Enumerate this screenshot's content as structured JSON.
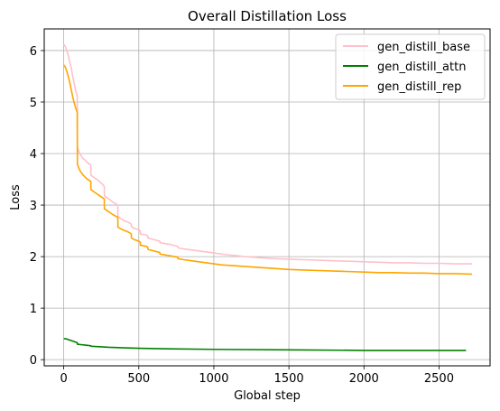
{
  "chart_data": {
    "type": "line",
    "title": "Overall Distillation Loss",
    "xlabel": "Global step",
    "ylabel": "Loss",
    "xlim": [
      -130,
      2840
    ],
    "ylim": [
      -0.12,
      6.42
    ],
    "xticks": [
      0,
      500,
      1000,
      1500,
      2000,
      2500
    ],
    "yticks": [
      0,
      1,
      2,
      3,
      4,
      5,
      6
    ],
    "grid": true,
    "legend_position": "top-right",
    "series": [
      {
        "name": "gen_distill_base",
        "color": "#ffc0cb",
        "x": [
          0,
          10,
          20,
          30,
          40,
          50,
          60,
          70,
          80,
          90,
          91,
          100,
          110,
          120,
          130,
          140,
          150,
          160,
          170,
          180,
          181,
          200,
          220,
          240,
          260,
          270,
          271,
          290,
          310,
          330,
          350,
          360,
          361,
          380,
          400,
          420,
          440,
          450,
          451,
          470,
          500,
          510,
          511,
          550,
          560,
          561,
          600,
          640,
          641,
          700,
          760,
          761,
          800,
          850,
          900,
          950,
          1000,
          1050,
          1100,
          1150,
          1200,
          1300,
          1400,
          1500,
          1600,
          1700,
          1800,
          1900,
          2000,
          2100,
          2200,
          2300,
          2400,
          2500,
          2600,
          2700,
          2720
        ],
        "y": [
          6.12,
          6.08,
          6.0,
          5.9,
          5.78,
          5.66,
          5.5,
          5.35,
          5.22,
          5.12,
          4.12,
          4.05,
          3.98,
          3.94,
          3.9,
          3.88,
          3.85,
          3.82,
          3.8,
          3.78,
          3.58,
          3.54,
          3.5,
          3.45,
          3.4,
          3.36,
          3.18,
          3.14,
          3.1,
          3.05,
          3.02,
          3.0,
          2.78,
          2.74,
          2.7,
          2.68,
          2.65,
          2.63,
          2.58,
          2.55,
          2.52,
          2.5,
          2.44,
          2.42,
          2.4,
          2.36,
          2.33,
          2.3,
          2.27,
          2.24,
          2.2,
          2.17,
          2.15,
          2.13,
          2.11,
          2.09,
          2.07,
          2.05,
          2.03,
          2.02,
          2.0,
          1.98,
          1.96,
          1.95,
          1.94,
          1.93,
          1.92,
          1.91,
          1.9,
          1.89,
          1.88,
          1.88,
          1.87,
          1.87,
          1.86,
          1.86,
          1.86
        ]
      },
      {
        "name": "gen_distill_attn",
        "color": "#008000",
        "x": [
          0,
          20,
          40,
          60,
          80,
          90,
          91,
          120,
          150,
          180,
          181,
          250,
          300,
          400,
          500,
          700,
          1000,
          1500,
          2000,
          2500,
          2680
        ],
        "y": [
          0.41,
          0.4,
          0.38,
          0.36,
          0.34,
          0.33,
          0.3,
          0.29,
          0.28,
          0.27,
          0.26,
          0.25,
          0.24,
          0.23,
          0.22,
          0.21,
          0.2,
          0.19,
          0.18,
          0.18,
          0.18
        ]
      },
      {
        "name": "gen_distill_rep",
        "color": "#ffa500",
        "x": [
          0,
          10,
          20,
          30,
          40,
          50,
          60,
          70,
          80,
          90,
          91,
          100,
          110,
          120,
          130,
          140,
          150,
          160,
          170,
          180,
          181,
          200,
          220,
          240,
          260,
          270,
          271,
          290,
          310,
          330,
          350,
          360,
          361,
          380,
          400,
          420,
          440,
          450,
          451,
          470,
          500,
          510,
          511,
          550,
          560,
          561,
          600,
          640,
          641,
          700,
          760,
          761,
          800,
          850,
          900,
          950,
          1000,
          1050,
          1100,
          1150,
          1200,
          1300,
          1400,
          1500,
          1600,
          1700,
          1800,
          1900,
          2000,
          2100,
          2200,
          2300,
          2400,
          2500,
          2600,
          2700,
          2720
        ],
        "y": [
          5.72,
          5.68,
          5.6,
          5.5,
          5.38,
          5.24,
          5.1,
          4.98,
          4.88,
          4.8,
          3.8,
          3.72,
          3.66,
          3.62,
          3.58,
          3.55,
          3.52,
          3.5,
          3.48,
          3.46,
          3.3,
          3.26,
          3.22,
          3.18,
          3.14,
          3.12,
          2.93,
          2.89,
          2.85,
          2.81,
          2.78,
          2.76,
          2.57,
          2.54,
          2.51,
          2.49,
          2.46,
          2.44,
          2.36,
          2.33,
          2.3,
          2.28,
          2.22,
          2.2,
          2.18,
          2.14,
          2.11,
          2.08,
          2.05,
          2.02,
          1.99,
          1.96,
          1.94,
          1.92,
          1.9,
          1.88,
          1.86,
          1.84,
          1.83,
          1.82,
          1.81,
          1.79,
          1.77,
          1.75,
          1.74,
          1.73,
          1.72,
          1.71,
          1.7,
          1.69,
          1.69,
          1.68,
          1.68,
          1.67,
          1.67,
          1.66,
          1.66
        ]
      }
    ]
  }
}
